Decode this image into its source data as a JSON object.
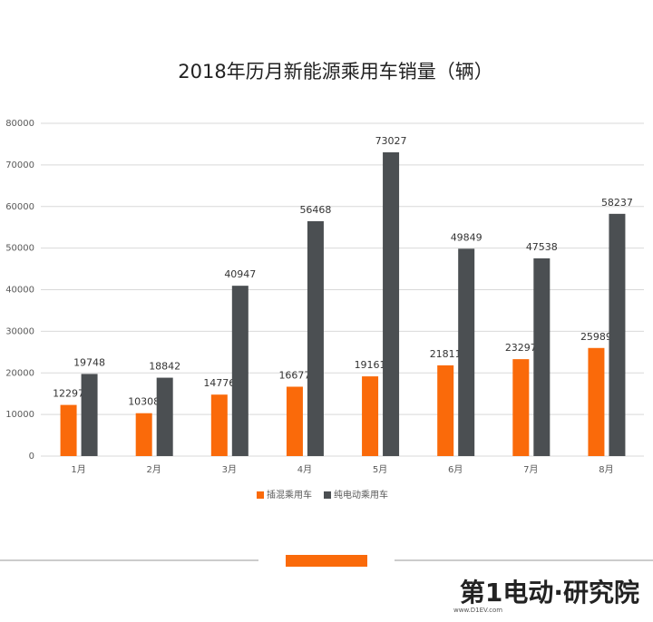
{
  "chart_data": {
    "type": "bar",
    "title": "2018年历月新能源乘用车销量（辆）",
    "categories": [
      "1月",
      "2月",
      "3月",
      "4月",
      "5月",
      "6月",
      "7月",
      "8月"
    ],
    "series": [
      {
        "name": "插混乘用车",
        "color": "#fa6a0a",
        "values": [
          12297,
          10308,
          14776,
          16677,
          19161,
          21811,
          23297,
          25989
        ]
      },
      {
        "name": "纯电动乘用车",
        "color": "#4b4f52",
        "values": [
          19748,
          18842,
          40947,
          56468,
          73027,
          49849,
          47538,
          58237
        ]
      }
    ],
    "ylim": [
      0,
      80000
    ],
    "yticks": [
      0,
      10000,
      20000,
      30000,
      40000,
      50000,
      60000,
      70000,
      80000
    ],
    "grid": true,
    "legend": "bottom"
  },
  "footer": {
    "brand": "第1电动·研究院",
    "url": "www.D1EV.com"
  }
}
